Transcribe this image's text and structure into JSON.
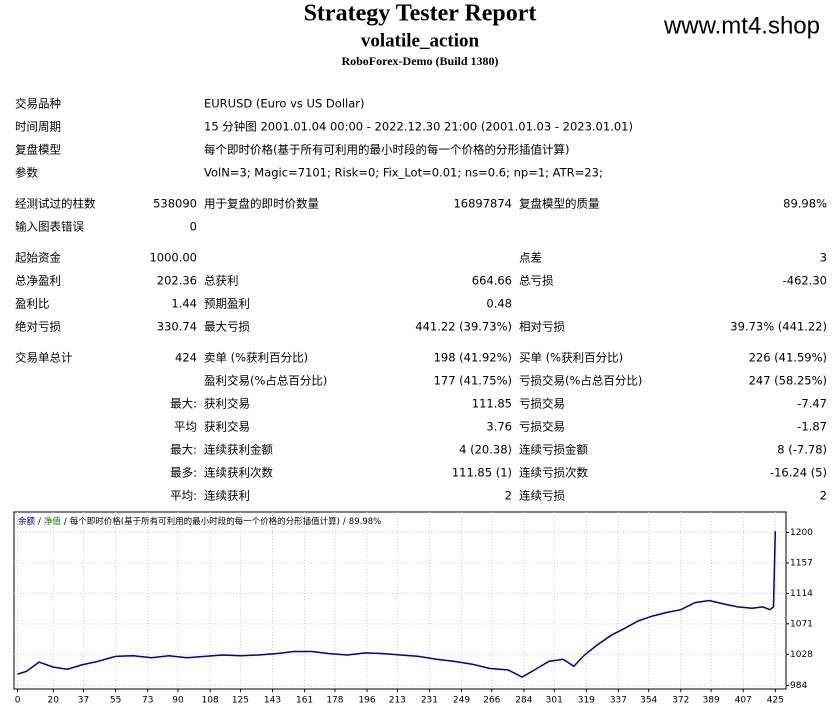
{
  "header": {
    "title": "Strategy Tester Report",
    "expert": "volatile_action",
    "server": "RoboForex-Demo (Build 1380)",
    "watermark": "www.mt4.shop"
  },
  "report": {
    "sections": [
      [
        [
          "交易品种",
          null,
          "EURUSD (Euro vs US Dollar)"
        ],
        [
          "时间周期",
          null,
          "15 分钟图 2001.01.04 00:00 - 2022.12.30 21:00 (2001.01.03 - 2023.01.01)"
        ],
        [
          "复盘模型",
          null,
          "每个即时价格(基于所有可利用的最小时段的每一个价格的分形插值计算)"
        ],
        [
          "参数",
          null,
          "VolN=3; Magic=7101; Risk=0; Fix_Lot=0.01; ns=0.6; np=1; ATR=23;"
        ]
      ],
      [
        [
          "经测试过的柱数",
          "538090",
          "用于复盘的即时价数量",
          "16897874",
          "复盘模型的质量",
          "89.98%"
        ],
        [
          "输入图表错误",
          "0"
        ]
      ],
      [
        [
          "起始资金",
          "1000.00",
          null,
          null,
          "点差",
          "3"
        ],
        [
          "总净盈利",
          "202.36",
          "总获利",
          "664.66",
          "总亏损",
          "-462.30"
        ],
        [
          "盈利比",
          "1.44",
          "预期盈利",
          "0.48"
        ],
        [
          "绝对亏损",
          "330.74",
          "最大亏损",
          "441.22 (39.73%)",
          "相对亏损",
          "39.73% (441.22)"
        ]
      ],
      [
        [
          "交易单总计",
          "424",
          "卖单 (%获利百分比)",
          "198 (41.92%)",
          "买单 (%获利百分比)",
          "226 (41.59%)"
        ],
        [
          null,
          null,
          "盈利交易(%占总百分比)",
          "177 (41.75%)",
          "亏损交易(%占总百分比)",
          "247 (58.25%)"
        ],
        [
          null,
          "最大:",
          "获利交易",
          "111.85",
          "亏损交易",
          "-7.47"
        ],
        [
          null,
          "平均",
          "获利交易",
          "3.76",
          "亏损交易",
          "-1.87"
        ],
        [
          null,
          "最大:",
          "连续获利金额",
          "4 (20.38)",
          "连续亏损金额",
          "8 (-7.78)"
        ],
        [
          null,
          "最多:",
          "连续获利次数",
          "111.85 (1)",
          "连续亏损次数",
          "-16.24 (5)"
        ],
        [
          null,
          "平均:",
          "连续获利",
          "2",
          "连续亏损",
          "2"
        ]
      ]
    ]
  },
  "chart_data": {
    "type": "line",
    "legend": {
      "balance": "余额",
      "equity": "净值",
      "separator": "/",
      "model": "每个即时价格(基于所有可利用的最小时段的每一个价格的分形插值计算)",
      "quality": "89.98%",
      "balance_color": "#0000c0",
      "equity_color": "#008000"
    },
    "x": [
      0,
      5,
      12,
      20,
      28,
      36,
      45,
      55,
      65,
      75,
      85,
      95,
      105,
      115,
      125,
      135,
      145,
      155,
      165,
      175,
      185,
      195,
      205,
      215,
      225,
      235,
      245,
      255,
      265,
      275,
      283,
      290,
      298,
      306,
      312,
      318,
      325,
      333,
      340,
      348,
      356,
      364,
      372,
      380,
      388,
      396,
      404,
      412,
      418,
      422,
      424,
      425
    ],
    "series": [
      {
        "name": "余额",
        "color": "#00008b",
        "values": [
          1000,
          1004,
          1017,
          1010,
          1007,
          1013,
          1018,
          1025,
          1026,
          1023,
          1026,
          1023,
          1025,
          1027,
          1026,
          1027,
          1029,
          1032,
          1032,
          1029,
          1027,
          1030,
          1029,
          1027,
          1025,
          1021,
          1018,
          1014,
          1008,
          1006,
          996,
          1006,
          1018,
          1021,
          1011,
          1027,
          1041,
          1055,
          1064,
          1075,
          1082,
          1087,
          1091,
          1101,
          1104,
          1099,
          1095,
          1093,
          1095,
          1091,
          1095,
          1202
        ]
      }
    ],
    "xlim": [
      -2,
      431
    ],
    "ylim": [
      979,
      1229
    ],
    "xticks": [
      0,
      20,
      37,
      55,
      73,
      90,
      108,
      125,
      143,
      161,
      178,
      196,
      213,
      231,
      249,
      266,
      284,
      301,
      319,
      337,
      354,
      372,
      389,
      407,
      425
    ],
    "yticks": [
      984,
      1028,
      1071,
      1114,
      1157,
      1200
    ],
    "grid": true
  }
}
